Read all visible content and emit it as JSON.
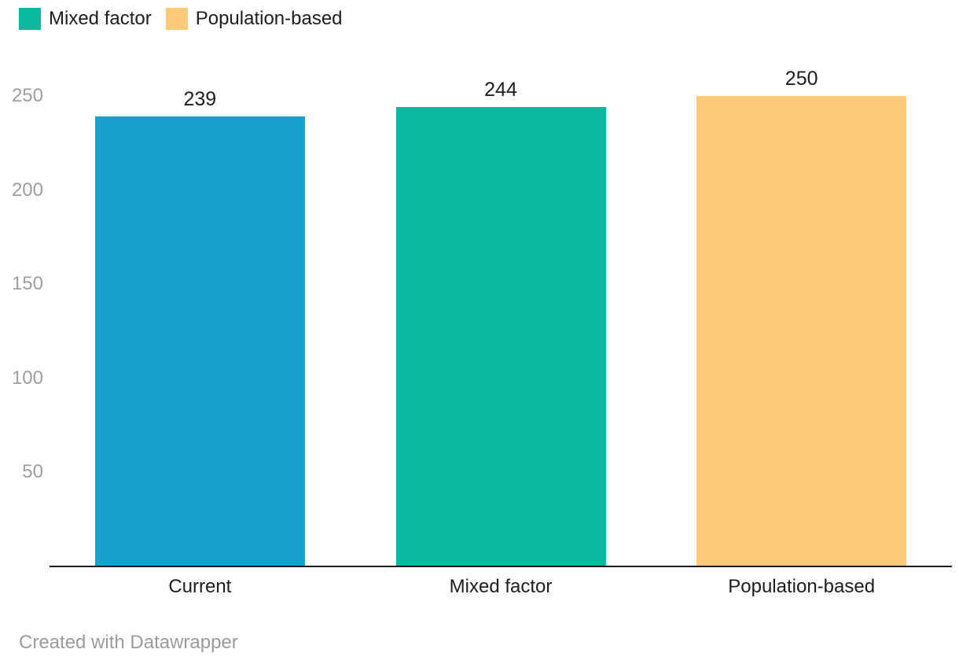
{
  "legend": {
    "items": [
      {
        "label": "Mixed factor",
        "color": "#0ab89d"
      },
      {
        "label": "Population-based",
        "color": "#fdca7c"
      }
    ]
  },
  "chart_data": {
    "type": "bar",
    "title": "",
    "xlabel": "",
    "ylabel": "",
    "categories": [
      "Current",
      "Mixed factor",
      "Population-based"
    ],
    "values": [
      239,
      244,
      250
    ],
    "value_labels": [
      "239",
      "244",
      "250"
    ],
    "bar_colors": [
      "#18a1cd",
      "#0ab89d",
      "#fdca7c"
    ],
    "y_ticks": [
      50,
      100,
      150,
      200,
      250
    ],
    "ylim": [
      0,
      250
    ],
    "grid": false,
    "legend_position": "top-left",
    "legend_entries": [
      "Mixed factor",
      "Population-based"
    ]
  },
  "footer": {
    "credit": "Created with Datawrapper"
  },
  "colors": {
    "axis_line": "#1a1a1a",
    "tick_label": "#9e9e9e",
    "text": "#1d1d1d",
    "footer_text": "#9b9b9b"
  }
}
